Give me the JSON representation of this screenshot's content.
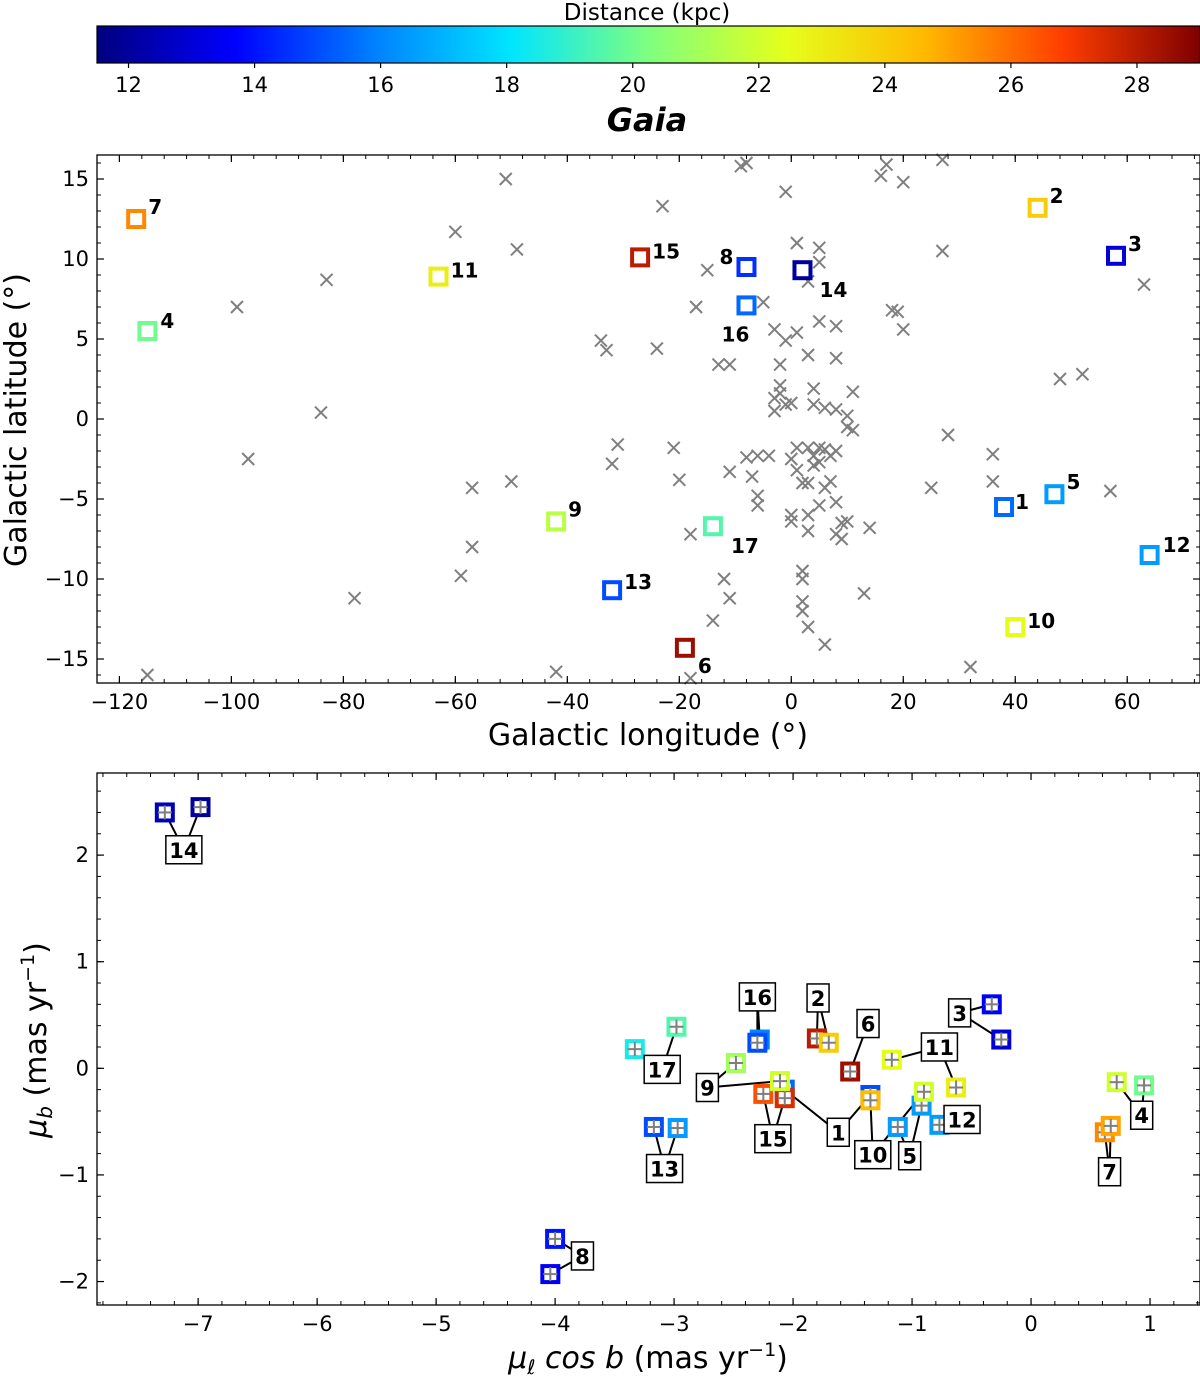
{
  "colorbar": {
    "title": "Distance (kpc)",
    "vmin": 11.5,
    "vmax": 29,
    "ticks": [
      12,
      14,
      16,
      18,
      20,
      22,
      24,
      26,
      28
    ],
    "stops": [
      "#00007f",
      "#0000ff",
      "#007fff",
      "#00e5ff",
      "#7fff7f",
      "#e5ff1a",
      "#ffb900",
      "#ff3e00",
      "#7f0000"
    ]
  },
  "gaia_label": "Gaia",
  "chart_data": [
    {
      "type": "scatter",
      "title": "",
      "xlabel": "Galactic longitude (°)",
      "ylabel": "Galactic latitude (°)",
      "xlim": [
        -124,
        73
      ],
      "ylim": [
        -16.5,
        16.5
      ],
      "xticks": [
        -120,
        -100,
        -80,
        -60,
        -40,
        -20,
        0,
        20,
        40,
        60
      ],
      "yticks": [
        -15,
        -10,
        -5,
        0,
        5,
        10,
        15
      ],
      "background_points": [
        [
          -51,
          15
        ],
        [
          -60,
          11.7
        ],
        [
          -49,
          10.6
        ],
        [
          -83,
          8.7
        ],
        [
          -99,
          7
        ],
        [
          -97,
          -2.5
        ],
        [
          -84,
          0.4
        ],
        [
          -78,
          -11.2
        ],
        [
          -115,
          -16
        ],
        [
          -59,
          -9.8
        ],
        [
          -57,
          -4.3
        ],
        [
          -57,
          -8
        ],
        [
          -50,
          -3.9
        ],
        [
          -42,
          -15.8
        ],
        [
          -34,
          4.9
        ],
        [
          -33,
          4.3
        ],
        [
          -31,
          -1.6
        ],
        [
          -32,
          -2.8
        ],
        [
          -23,
          13.3
        ],
        [
          -24,
          4.4
        ],
        [
          -21,
          -1.8
        ],
        [
          -20,
          -3.8
        ],
        [
          -18,
          -7.2
        ],
        [
          -18,
          -16.2
        ],
        [
          -17,
          7
        ],
        [
          -15,
          9.3
        ],
        [
          -14,
          -12.6
        ],
        [
          -13,
          3.4
        ],
        [
          -12,
          -10
        ],
        [
          -11,
          3.4
        ],
        [
          -11,
          -3.3
        ],
        [
          -11,
          -11.2
        ],
        [
          -9,
          15.8
        ],
        [
          -8,
          16
        ],
        [
          -8,
          -2.4
        ],
        [
          -7,
          -3.6
        ],
        [
          -6,
          -4.8
        ],
        [
          -6,
          -5.4
        ],
        [
          -6,
          -2.3
        ],
        [
          -5,
          7.3
        ],
        [
          -4,
          -2.3
        ],
        [
          -3,
          5.6
        ],
        [
          -3,
          1.3
        ],
        [
          -3,
          0.5
        ],
        [
          -2,
          3.4
        ],
        [
          -2,
          2.1
        ],
        [
          -2,
          1.6
        ],
        [
          -1,
          14.2
        ],
        [
          -1,
          4.9
        ],
        [
          -1,
          0.9
        ],
        [
          0,
          1.0
        ],
        [
          0,
          -2.5
        ],
        [
          0,
          -6
        ],
        [
          0,
          -6.4
        ],
        [
          1,
          11
        ],
        [
          1,
          5.4
        ],
        [
          1,
          -1.8
        ],
        [
          1,
          -3.2
        ],
        [
          2,
          -4.0
        ],
        [
          2,
          9.5
        ],
        [
          2,
          -9.5
        ],
        [
          2,
          -10
        ],
        [
          2,
          -11.4
        ],
        [
          2,
          -12
        ],
        [
          3,
          -4.0
        ],
        [
          3,
          8.6
        ],
        [
          3,
          4.0
        ],
        [
          3,
          -1.8
        ],
        [
          3,
          -6
        ],
        [
          3,
          -7
        ],
        [
          3,
          -13
        ],
        [
          4,
          -2.3
        ],
        [
          4,
          -2.9
        ],
        [
          4,
          1.9
        ],
        [
          4,
          0.9
        ],
        [
          5,
          10.7
        ],
        [
          5,
          9.8
        ],
        [
          5,
          6.1
        ],
        [
          5,
          -1.8
        ],
        [
          5,
          -2.7
        ],
        [
          5,
          -5.4
        ],
        [
          6,
          -14.1
        ],
        [
          6,
          -4.3
        ],
        [
          6,
          -1.9
        ],
        [
          6,
          0.7
        ],
        [
          7,
          -3.9
        ],
        [
          7,
          -2.3
        ],
        [
          8,
          -7.2
        ],
        [
          8,
          5.8
        ],
        [
          8,
          3.8
        ],
        [
          8,
          0.6
        ],
        [
          8,
          -2.0
        ],
        [
          8,
          -5.2
        ],
        [
          9,
          -6.5
        ],
        [
          9,
          -7.5
        ],
        [
          10,
          -6.4
        ],
        [
          10,
          0.2
        ],
        [
          10,
          -0.5
        ],
        [
          11,
          -0.7
        ],
        [
          11,
          1.7
        ],
        [
          13,
          -10.9
        ],
        [
          14,
          -6.8
        ],
        [
          16,
          15.2
        ],
        [
          17,
          15.9
        ],
        [
          18,
          6.8
        ],
        [
          19,
          6.7
        ],
        [
          20,
          14.8
        ],
        [
          20,
          5.6
        ],
        [
          25,
          -4.3
        ],
        [
          27,
          10.5
        ],
        [
          27,
          16.2
        ],
        [
          28,
          -1.0
        ],
        [
          32,
          -15.5
        ],
        [
          36,
          -2.2
        ],
        [
          36,
          -3.9
        ],
        [
          48,
          2.5
        ],
        [
          52,
          2.8
        ],
        [
          57,
          -4.5
        ],
        [
          63,
          8.4
        ]
      ],
      "objects": [
        {
          "id": "1",
          "l": 38,
          "b": -5.5,
          "d": 15.5
        },
        {
          "id": "2",
          "l": 44,
          "b": 13.2,
          "d": 24.0
        },
        {
          "id": "3",
          "l": 58,
          "b": 10.2,
          "d": 13.0
        },
        {
          "id": "4",
          "l": -115,
          "b": 5.5,
          "d": 20.0
        },
        {
          "id": "5",
          "l": 47,
          "b": -4.7,
          "d": 16.5
        },
        {
          "id": "6",
          "l": -19,
          "b": -14.3,
          "d": 28.5
        },
        {
          "id": "7",
          "l": -117,
          "b": 12.5,
          "d": 25.5
        },
        {
          "id": "8",
          "l": -8,
          "b": 9.5,
          "d": 14.5
        },
        {
          "id": "9",
          "l": -42,
          "b": -6.4,
          "d": 21.5
        },
        {
          "id": "10",
          "l": 40,
          "b": -13.0,
          "d": 22.5
        },
        {
          "id": "11",
          "l": -63,
          "b": 8.9,
          "d": 23.0
        },
        {
          "id": "12",
          "l": 64,
          "b": -8.5,
          "d": 16.5
        },
        {
          "id": "13",
          "l": -32,
          "b": -10.7,
          "d": 15.0
        },
        {
          "id": "14",
          "l": 2,
          "b": 9.3,
          "d": 12.0
        },
        {
          "id": "15",
          "l": -27,
          "b": 10.1,
          "d": 28.0
        },
        {
          "id": "16",
          "l": -8,
          "b": 7.1,
          "d": 15.5
        },
        {
          "id": "17",
          "l": -14,
          "b": -6.7,
          "d": 19.5
        }
      ]
    },
    {
      "type": "scatter",
      "title": "",
      "xlabel": "μℓ cos b (mas yr⁻¹)",
      "ylabel": "μb (mas yr⁻¹)",
      "xlim": [
        -7.85,
        1.42
      ],
      "ylim": [
        -2.22,
        2.77
      ],
      "xticks": [
        -7,
        -6,
        -5,
        -4,
        -3,
        -2,
        -1,
        0,
        1
      ],
      "yticks": [
        -2,
        -1,
        0,
        1,
        2
      ],
      "points": [
        {
          "id": "1",
          "x": -2.07,
          "y": -0.2,
          "d": 15.5
        },
        {
          "id": "1",
          "x": -1.35,
          "y": -0.25,
          "d": 15.0
        },
        {
          "id": "2",
          "x": -1.8,
          "y": 0.28,
          "d": 28.0
        },
        {
          "id": "2",
          "x": -1.7,
          "y": 0.24,
          "d": 24.0
        },
        {
          "id": "3",
          "x": -0.33,
          "y": 0.6,
          "d": 13.5
        },
        {
          "id": "3",
          "x": -0.25,
          "y": 0.27,
          "d": 13.0
        },
        {
          "id": "4",
          "x": 0.72,
          "y": -0.13,
          "d": 22.0
        },
        {
          "id": "4",
          "x": 0.95,
          "y": -0.16,
          "d": 20.0
        },
        {
          "id": "5",
          "x": -1.12,
          "y": -0.55,
          "d": 16.5
        },
        {
          "id": "5",
          "x": -0.92,
          "y": -0.35,
          "d": 16.5
        },
        {
          "id": "6",
          "x": -1.52,
          "y": -0.03,
          "d": 28.5
        },
        {
          "id": "7",
          "x": 0.62,
          "y": -0.6,
          "d": 25.5
        },
        {
          "id": "7",
          "x": 0.67,
          "y": -0.54,
          "d": 25.0
        },
        {
          "id": "8",
          "x": -4.0,
          "y": -1.6,
          "d": 14.0
        },
        {
          "id": "8",
          "x": -4.04,
          "y": -1.93,
          "d": 13.5
        },
        {
          "id": "9",
          "x": -2.48,
          "y": 0.05,
          "d": 21.0
        },
        {
          "id": "10",
          "x": -1.35,
          "y": -0.3,
          "d": 24.5
        },
        {
          "id": "10",
          "x": -0.9,
          "y": -0.22,
          "d": 22.0
        },
        {
          "id": "11",
          "x": -1.17,
          "y": 0.08,
          "d": 22.5
        },
        {
          "id": "11",
          "x": -0.63,
          "y": -0.18,
          "d": 23.0
        },
        {
          "id": "12",
          "x": -0.77,
          "y": -0.53,
          "d": 16.5
        },
        {
          "id": "13",
          "x": -3.17,
          "y": -0.55,
          "d": 15.0
        },
        {
          "id": "13",
          "x": -2.97,
          "y": -0.56,
          "d": 16.5
        },
        {
          "id": "14",
          "x": -7.28,
          "y": 2.4,
          "d": 12.5
        },
        {
          "id": "14",
          "x": -6.98,
          "y": 2.45,
          "d": 12.0
        },
        {
          "id": "15",
          "x": -2.25,
          "y": -0.24,
          "d": 26.5
        },
        {
          "id": "15",
          "x": -2.07,
          "y": -0.28,
          "d": 27.5
        },
        {
          "id": "16",
          "x": -2.28,
          "y": 0.27,
          "d": 16.0
        },
        {
          "id": "16",
          "x": -2.3,
          "y": 0.24,
          "d": 15.0
        },
        {
          "id": "17",
          "x": -3.33,
          "y": 0.18,
          "d": 18.5
        },
        {
          "id": "17",
          "x": -2.98,
          "y": 0.39,
          "d": 19.5
        },
        {
          "id": "9",
          "x": -2.11,
          "y": -0.12,
          "d": 22.0
        }
      ],
      "labels": [
        {
          "id": "14",
          "x": -7.12,
          "y": 2.05
        },
        {
          "id": "8",
          "x": -3.77,
          "y": -1.76
        },
        {
          "id": "17",
          "x": -3.1,
          "y": -0.01
        },
        {
          "id": "13",
          "x": -3.08,
          "y": -0.94
        },
        {
          "id": "16",
          "x": -2.3,
          "y": 0.67
        },
        {
          "id": "9",
          "x": -2.72,
          "y": -0.18
        },
        {
          "id": "15",
          "x": -2.17,
          "y": -0.66
        },
        {
          "id": "2",
          "x": -1.79,
          "y": 0.66
        },
        {
          "id": "6",
          "x": -1.37,
          "y": 0.42
        },
        {
          "id": "1",
          "x": -1.62,
          "y": -0.6
        },
        {
          "id": "10",
          "x": -1.33,
          "y": -0.81
        },
        {
          "id": "5",
          "x": -1.02,
          "y": -0.82
        },
        {
          "id": "11",
          "x": -0.77,
          "y": 0.2
        },
        {
          "id": "12",
          "x": -0.58,
          "y": -0.48
        },
        {
          "id": "3",
          "x": -0.6,
          "y": 0.52
        },
        {
          "id": "4",
          "x": 0.93,
          "y": -0.44
        },
        {
          "id": "7",
          "x": 0.66,
          "y": -0.97
        }
      ]
    }
  ]
}
